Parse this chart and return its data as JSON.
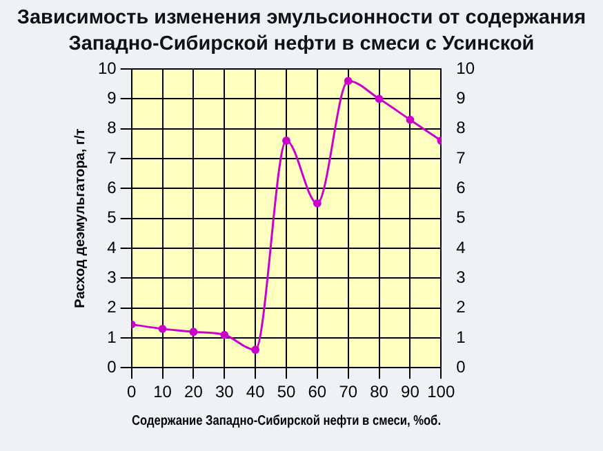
{
  "chart_data": {
    "type": "line",
    "title": "Зависимость изменения эмульсионности от содержания Западно-Сибирской нефти в смеси с Усинской",
    "xlabel": "Содержание Западно-Сибирской нефти в смеси, %об.",
    "ylabel": "Расход деэмульгатора, г/т",
    "x": [
      0,
      10,
      20,
      30,
      40,
      50,
      60,
      70,
      80,
      90,
      100
    ],
    "series": [
      {
        "color": "#cc00cc",
        "values": [
          1.45,
          1.3,
          1.2,
          1.1,
          0.6,
          7.6,
          5.5,
          9.6,
          9.0,
          8.3,
          7.6
        ]
      }
    ],
    "xlim": [
      0,
      100
    ],
    "xticks": [
      0,
      10,
      20,
      30,
      40,
      50,
      60,
      70,
      80,
      90,
      100
    ],
    "ylim": [
      0,
      10
    ],
    "yticks": [
      0,
      1,
      2,
      3,
      4,
      5,
      6,
      7,
      8,
      9,
      10
    ],
    "y2lim": [
      0,
      10
    ],
    "y2ticks": [
      0,
      1,
      2,
      3,
      4,
      5,
      6,
      7,
      8,
      9,
      10
    ],
    "grid": true,
    "legend": false,
    "marker": "circle",
    "line_style": "solid"
  }
}
